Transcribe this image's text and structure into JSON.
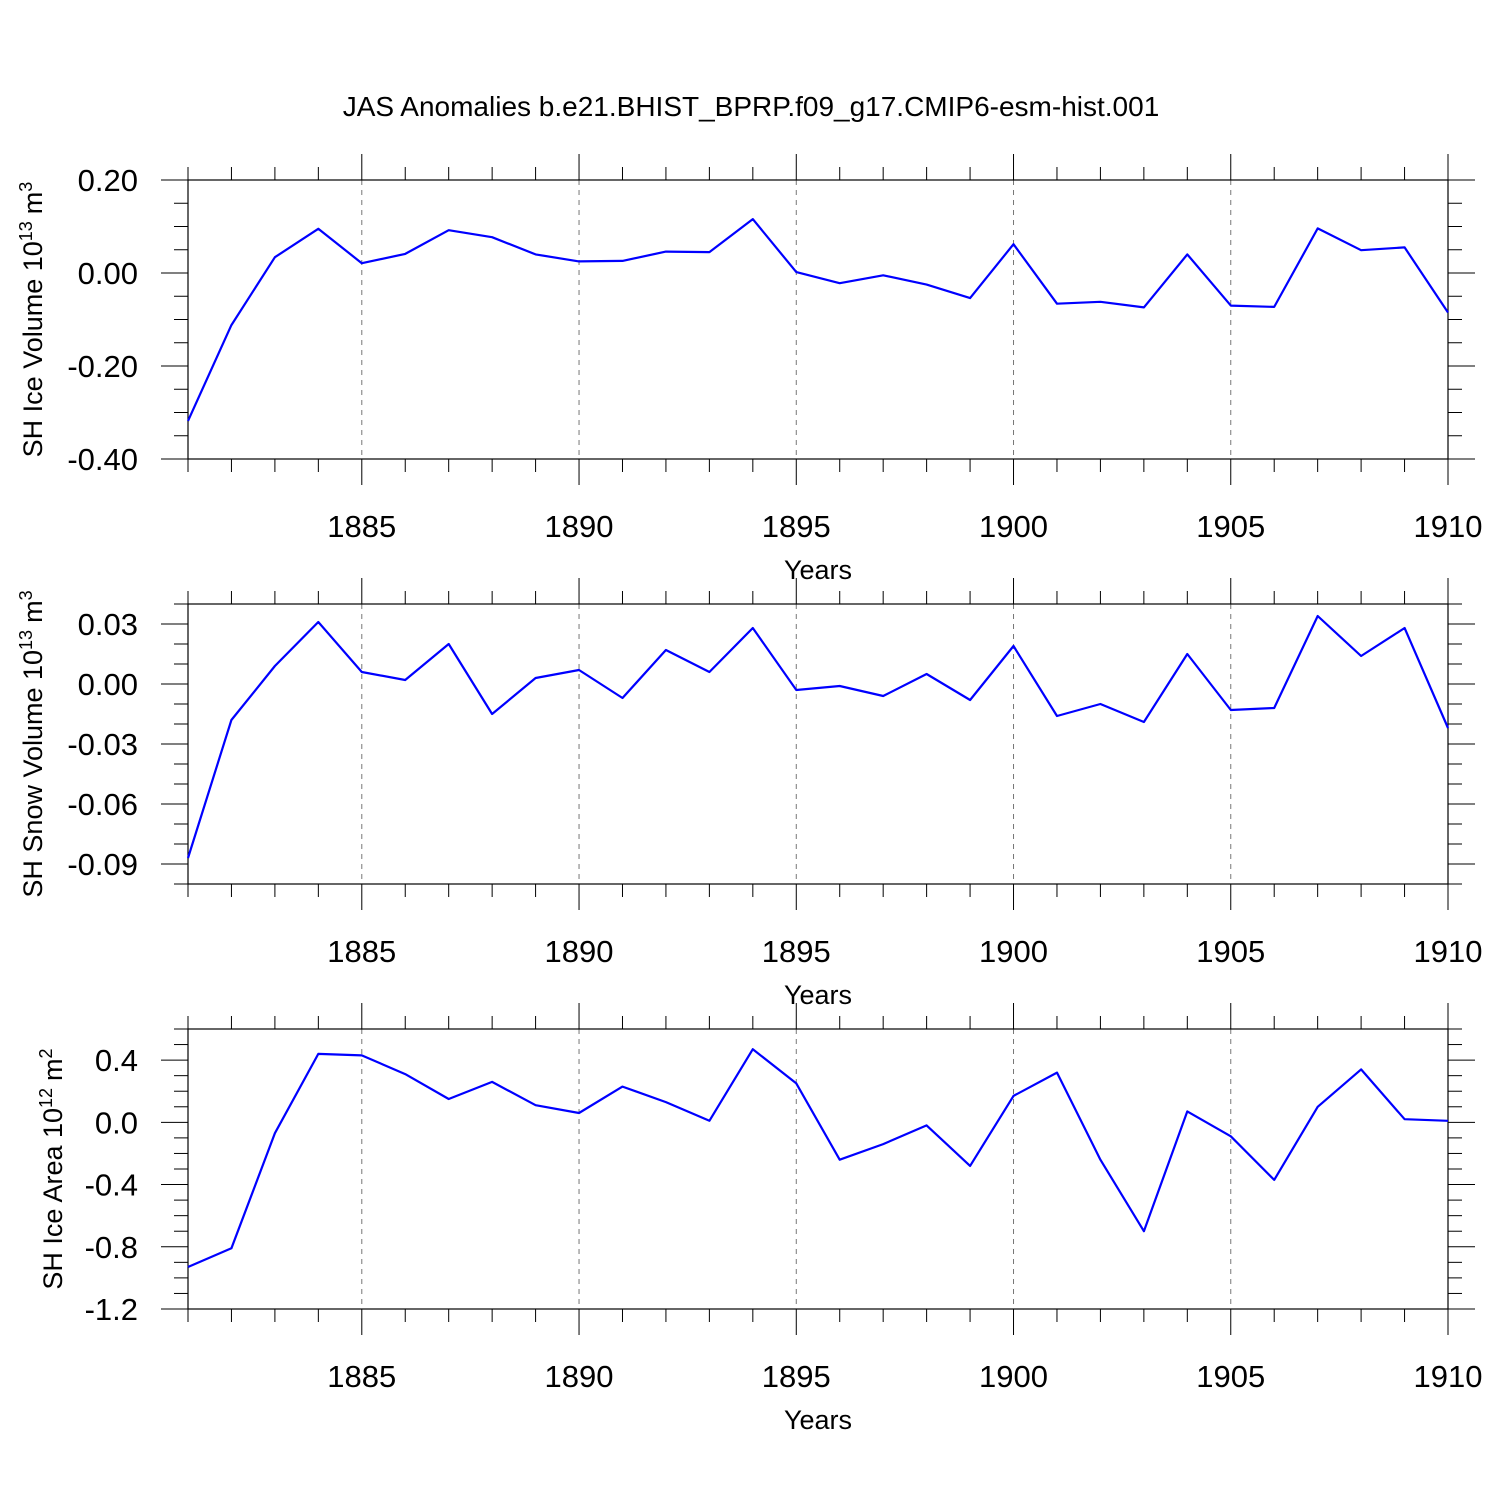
{
  "figure_title": "JAS Anomalies b.e21.BHIST_BPRP.f09_g17.CMIP6-esm-hist.001",
  "chart_data": [
    {
      "type": "line",
      "title": "",
      "xlabel": "Years",
      "ylabel_main": "SH Ice Volume 10",
      "ylabel_exp": "13",
      "ylabel_unit": "m",
      "ylabel_unit_exp": "3",
      "xlim": [
        1881,
        1910
      ],
      "ylim": [
        -0.4,
        0.2
      ],
      "x_ticks": [
        1885,
        1890,
        1895,
        1900,
        1905,
        1910
      ],
      "x_tick_labels": [
        "1885",
        "1890",
        "1895",
        "1900",
        "1905",
        "1910"
      ],
      "y_ticks": [
        -0.4,
        -0.2,
        0.0,
        0.2
      ],
      "y_tick_labels": [
        "-0.40",
        "-0.20",
        "0.00",
        "0.20"
      ],
      "y_minor_step": 0.05,
      "grid": "vertical dashed at major x ticks",
      "line_color": "#0000ff",
      "series": [
        {
          "x": [
            1881,
            1882,
            1883,
            1884,
            1885,
            1886,
            1887,
            1888,
            1889,
            1890,
            1891,
            1892,
            1893,
            1894,
            1895,
            1896,
            1897,
            1898,
            1899,
            1900,
            1901,
            1902,
            1903,
            1904,
            1905,
            1906,
            1907,
            1908,
            1909,
            1910
          ],
          "values": [
            -0.318,
            -0.112,
            0.034,
            0.095,
            0.021,
            0.041,
            0.092,
            0.077,
            0.04,
            0.025,
            0.026,
            0.046,
            0.045,
            0.116,
            0.002,
            -0.022,
            -0.005,
            -0.025,
            -0.054,
            0.062,
            -0.066,
            -0.062,
            -0.074,
            0.04,
            -0.07,
            -0.073,
            0.096,
            0.049,
            0.055,
            -0.085
          ]
        }
      ]
    },
    {
      "type": "line",
      "title": "",
      "xlabel": "Years",
      "ylabel_main": "SH Snow Volume 10",
      "ylabel_exp": "13",
      "ylabel_unit": "m",
      "ylabel_unit_exp": "3",
      "xlim": [
        1881,
        1910
      ],
      "ylim": [
        -0.1,
        0.04
      ],
      "x_ticks": [
        1885,
        1890,
        1895,
        1900,
        1905,
        1910
      ],
      "x_tick_labels": [
        "1885",
        "1890",
        "1895",
        "1900",
        "1905",
        "1910"
      ],
      "y_ticks": [
        -0.09,
        -0.06,
        -0.03,
        0.0,
        0.03
      ],
      "y_tick_labels": [
        "-0.09",
        "-0.06",
        "-0.03",
        "0.00",
        "0.03"
      ],
      "y_minor_step": 0.01,
      "grid": "vertical dashed at major x ticks",
      "line_color": "#0000ff",
      "series": [
        {
          "x": [
            1881,
            1882,
            1883,
            1884,
            1885,
            1886,
            1887,
            1888,
            1889,
            1890,
            1891,
            1892,
            1893,
            1894,
            1895,
            1896,
            1897,
            1898,
            1899,
            1900,
            1901,
            1902,
            1903,
            1904,
            1905,
            1906,
            1907,
            1908,
            1909,
            1910
          ],
          "values": [
            -0.087,
            -0.018,
            0.009,
            0.031,
            0.006,
            0.002,
            0.02,
            -0.015,
            0.003,
            0.007,
            -0.007,
            0.017,
            0.006,
            0.028,
            -0.003,
            -0.001,
            -0.006,
            0.005,
            -0.008,
            0.019,
            -0.016,
            -0.01,
            -0.019,
            0.015,
            -0.013,
            -0.012,
            0.034,
            0.014,
            0.028,
            -0.022
          ]
        }
      ]
    },
    {
      "type": "line",
      "title": "",
      "xlabel": "Years",
      "ylabel_main": "SH Ice Area 10",
      "ylabel_exp": "12",
      "ylabel_unit": "m",
      "ylabel_unit_exp": "2",
      "xlim": [
        1881,
        1910
      ],
      "ylim": [
        -1.2,
        0.6
      ],
      "x_ticks": [
        1885,
        1890,
        1895,
        1900,
        1905,
        1910
      ],
      "x_tick_labels": [
        "1885",
        "1890",
        "1895",
        "1900",
        "1905",
        "1910"
      ],
      "y_ticks": [
        -1.2,
        -0.8,
        -0.4,
        0.0,
        0.4
      ],
      "y_tick_labels": [
        "-1.2",
        "-0.8",
        "-0.4",
        "0.0",
        "0.4"
      ],
      "y_minor_step": 0.1,
      "grid": "vertical dashed at major x ticks",
      "line_color": "#0000ff",
      "series": [
        {
          "x": [
            1881,
            1882,
            1883,
            1884,
            1885,
            1886,
            1887,
            1888,
            1889,
            1890,
            1891,
            1892,
            1893,
            1894,
            1895,
            1896,
            1897,
            1898,
            1899,
            1900,
            1901,
            1902,
            1903,
            1904,
            1905,
            1906,
            1907,
            1908,
            1909,
            1910
          ],
          "values": [
            -0.93,
            -0.81,
            -0.07,
            0.44,
            0.43,
            0.31,
            0.15,
            0.26,
            0.11,
            0.06,
            0.23,
            0.13,
            0.01,
            0.47,
            0.25,
            -0.24,
            -0.14,
            -0.02,
            -0.28,
            0.17,
            0.32,
            -0.24,
            -0.7,
            0.07,
            -0.09,
            -0.37,
            0.1,
            0.34,
            0.02,
            0.01
          ]
        }
      ]
    }
  ]
}
